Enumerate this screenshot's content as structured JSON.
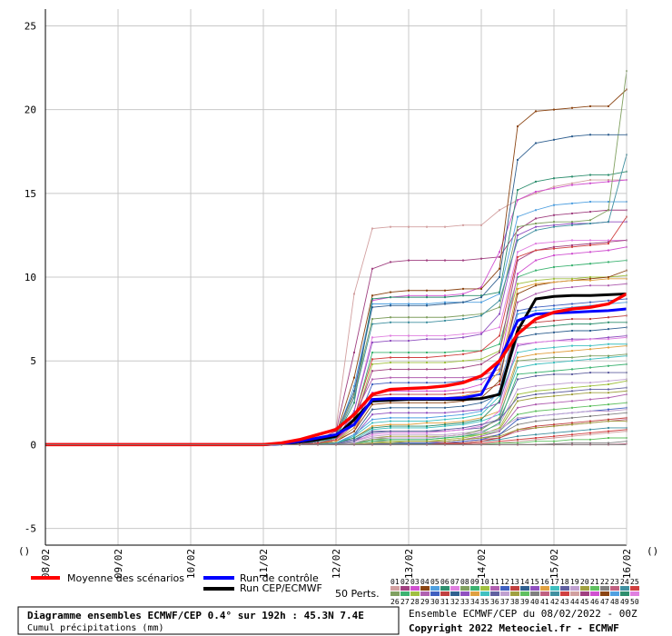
{
  "chart_data": {
    "type": "line",
    "title": "Diagramme ensembles ECMWF/CEP 0.4° sur 192h : 45.3N 7.4E",
    "subtitle": "Cumul précipitations (mm)",
    "ylim": [
      -6,
      26
    ],
    "yticks": [
      25,
      20,
      15,
      10,
      5,
      0,
      -5
    ],
    "x_labels": [
      "08/02",
      "09/02",
      "10/02",
      "11/02",
      "12/02",
      "13/02",
      "14/02",
      "15/02",
      "16/02"
    ],
    "x_range": [
      0,
      192
    ],
    "grid": true,
    "mean": {
      "name": "Moyenne des scénarios",
      "color": "#ff0000",
      "x": [
        0,
        72,
        78,
        84,
        90,
        96,
        102,
        108,
        114,
        120,
        126,
        132,
        138,
        144,
        150,
        156,
        162,
        168,
        174,
        180,
        186,
        192
      ],
      "y": [
        0,
        0,
        0.1,
        0.3,
        0.6,
        0.9,
        1.8,
        3.0,
        3.3,
        3.35,
        3.4,
        3.5,
        3.7,
        4.1,
        5.0,
        6.6,
        7.5,
        7.9,
        8.1,
        8.2,
        8.4,
        9.0
      ]
    },
    "control": {
      "name": "Run de contrôle",
      "color": "#0000ff",
      "x": [
        0,
        72,
        78,
        84,
        90,
        96,
        102,
        108,
        114,
        120,
        126,
        132,
        138,
        144,
        150,
        156,
        162,
        168,
        174,
        180,
        186,
        192
      ],
      "y": [
        0,
        0,
        0.05,
        0.2,
        0.4,
        0.6,
        1.2,
        2.7,
        2.75,
        2.75,
        2.75,
        2.75,
        2.8,
        3.0,
        5.0,
        7.4,
        7.8,
        7.85,
        7.9,
        7.95,
        8.0,
        8.1
      ]
    },
    "hres": {
      "name": "Run CEP/ECMWF",
      "color": "#000000",
      "x": [
        0,
        72,
        78,
        84,
        90,
        96,
        102,
        108,
        114,
        120,
        126,
        132,
        138,
        144,
        150,
        156,
        162,
        168,
        174,
        180,
        186,
        192
      ],
      "y": [
        0,
        0,
        0.05,
        0.15,
        0.3,
        0.5,
        1.5,
        2.6,
        2.65,
        2.7,
        2.7,
        2.7,
        2.7,
        2.75,
        3.0,
        6.8,
        8.7,
        8.85,
        8.9,
        8.9,
        8.95,
        9.0
      ]
    },
    "perturbations_label": "50 Perts.",
    "member_ids_row1": [
      "01",
      "02",
      "03",
      "04",
      "05",
      "06",
      "07",
      "08",
      "09",
      "10",
      "11",
      "12",
      "13",
      "14",
      "15",
      "16",
      "17",
      "18",
      "19",
      "20",
      "21",
      "22",
      "23",
      "24",
      "25"
    ],
    "member_ids_row2": [
      "26",
      "27",
      "28",
      "29",
      "30",
      "31",
      "32",
      "33",
      "34",
      "35",
      "36",
      "37",
      "38",
      "39",
      "40",
      "41",
      "42",
      "43",
      "44",
      "45",
      "46",
      "47",
      "48",
      "49",
      "50"
    ],
    "member_colors": [
      "#d2a0a0",
      "#a04080",
      "#d050d0",
      "#8b4513",
      "#50a0e0",
      "#2f8f6f",
      "#e080e0",
      "#80a060",
      "#3cb371",
      "#a0c040",
      "#b060b0",
      "#4060c0",
      "#c04040",
      "#306090",
      "#9050c0",
      "#e0a040",
      "#40c0c0",
      "#6060a0",
      "#c0a0d0",
      "#a0a040",
      "#60c060",
      "#808080",
      "#c06080",
      "#4090a0",
      "#d04040"
    ],
    "members": [
      [
        0,
        0,
        0,
        0,
        0.6,
        1.0,
        9.0,
        12.9,
        13.0,
        13.0,
        13.0,
        13.0,
        13.1,
        13.1,
        14.0,
        14.6,
        15.0,
        15.4,
        15.6,
        15.8,
        15.8,
        15.8
      ],
      [
        0,
        0,
        0,
        0,
        0.3,
        0.8,
        5.5,
        10.5,
        10.9,
        11.0,
        11.0,
        11.0,
        11.0,
        11.1,
        11.2,
        12.8,
        13.5,
        13.7,
        13.8,
        13.9,
        14.0,
        14.0
      ],
      [
        0,
        0,
        0,
        0,
        0.2,
        0.5,
        3.0,
        8.6,
        8.8,
        8.9,
        8.9,
        8.9,
        9.0,
        9.4,
        11.5,
        14.6,
        15.1,
        15.3,
        15.5,
        15.6,
        15.7,
        15.8
      ],
      [
        0,
        0,
        0,
        0,
        0.2,
        0.6,
        4.0,
        8.9,
        9.1,
        9.2,
        9.2,
        9.2,
        9.3,
        9.3,
        10.5,
        19.0,
        19.9,
        20.0,
        20.1,
        20.2,
        20.2,
        21.2
      ],
      [
        0,
        0,
        0,
        0,
        0.1,
        0.4,
        3.5,
        8.4,
        8.4,
        8.4,
        8.4,
        8.5,
        8.5,
        8.5,
        9.0,
        13.6,
        14.0,
        14.3,
        14.4,
        14.5,
        14.5,
        14.5
      ],
      [
        0,
        0,
        0,
        0,
        0.2,
        0.4,
        2.5,
        8.7,
        8.8,
        8.8,
        8.8,
        8.8,
        8.9,
        8.9,
        9.1,
        15.2,
        15.7,
        15.9,
        16.0,
        16.1,
        16.1,
        16.3
      ],
      [
        0,
        0,
        0,
        0,
        0.1,
        0.3,
        2.0,
        6.4,
        6.5,
        6.5,
        6.5,
        6.5,
        6.6,
        6.7,
        7.0,
        11.5,
        12.0,
        12.1,
        12.2,
        12.2,
        12.2,
        12.2
      ],
      [
        0,
        0,
        0,
        0,
        0.2,
        0.5,
        3.0,
        7.5,
        7.6,
        7.6,
        7.6,
        7.6,
        7.7,
        7.8,
        8.2,
        13.0,
        13.2,
        13.3,
        13.3,
        13.4,
        14.0,
        22.3
      ],
      [
        0,
        0,
        0,
        0,
        0.1,
        0.3,
        1.5,
        5.5,
        5.5,
        5.5,
        5.5,
        5.5,
        5.6,
        5.6,
        6.0,
        10.0,
        10.4,
        10.6,
        10.7,
        10.8,
        10.9,
        11.0
      ],
      [
        0,
        0,
        0,
        0,
        0.1,
        0.2,
        1.2,
        4.8,
        4.9,
        4.9,
        4.9,
        4.9,
        5.0,
        5.1,
        5.6,
        9.6,
        9.8,
        9.9,
        9.9,
        10.0,
        10.0,
        10.1
      ],
      [
        0,
        0,
        0,
        0,
        0.1,
        0.3,
        1.8,
        3.9,
        4.0,
        4.0,
        4.0,
        4.0,
        4.0,
        4.1,
        4.5,
        8.5,
        9.0,
        9.3,
        9.4,
        9.5,
        9.5,
        9.6
      ],
      [
        0,
        0,
        0,
        0,
        0.1,
        0.2,
        1.0,
        3.6,
        3.7,
        3.7,
        3.7,
        3.7,
        3.8,
        3.9,
        4.2,
        8.0,
        8.2,
        8.3,
        8.4,
        8.5,
        8.6,
        8.7
      ],
      [
        0,
        0,
        0,
        0,
        0.05,
        0.2,
        0.8,
        2.9,
        3.0,
        3.0,
        3.0,
        3.0,
        3.1,
        3.2,
        3.6,
        7.0,
        7.3,
        7.4,
        7.5,
        7.5,
        7.6,
        7.7
      ],
      [
        0,
        0,
        0,
        0,
        0.05,
        0.1,
        0.6,
        2.1,
        2.2,
        2.2,
        2.2,
        2.2,
        2.3,
        2.5,
        3.0,
        6.4,
        6.6,
        6.7,
        6.8,
        6.8,
        6.9,
        7.0
      ],
      [
        0,
        0,
        0,
        0,
        0.05,
        0.1,
        0.5,
        1.8,
        1.9,
        1.9,
        1.9,
        1.9,
        2.0,
        2.1,
        2.5,
        5.9,
        6.1,
        6.2,
        6.3,
        6.3,
        6.4,
        6.5
      ],
      [
        0,
        0,
        0,
        0,
        0.05,
        0.1,
        0.4,
        1.1,
        1.2,
        1.2,
        1.3,
        1.3,
        1.4,
        1.6,
        2.0,
        5.2,
        5.4,
        5.5,
        5.6,
        5.7,
        5.8,
        5.9
      ],
      [
        0,
        0,
        0,
        0,
        0.05,
        0.1,
        0.3,
        0.9,
        1.0,
        1.0,
        1.0,
        1.1,
        1.2,
        1.4,
        1.8,
        4.6,
        4.8,
        4.9,
        5.0,
        5.1,
        5.2,
        5.3
      ],
      [
        0,
        0,
        0,
        0,
        0.05,
        0.1,
        0.3,
        0.7,
        0.8,
        0.8,
        0.8,
        0.8,
        0.9,
        1.0,
        1.5,
        3.9,
        4.1,
        4.2,
        4.2,
        4.3,
        4.3,
        4.3
      ],
      [
        0,
        0,
        0,
        0,
        0.0,
        0.05,
        0.2,
        0.5,
        0.6,
        0.6,
        0.6,
        0.6,
        0.7,
        0.8,
        1.2,
        3.3,
        3.5,
        3.6,
        3.7,
        3.7,
        3.8,
        3.9
      ],
      [
        0,
        0,
        0,
        0,
        0.0,
        0.05,
        0.1,
        0.4,
        0.5,
        0.5,
        0.5,
        0.5,
        0.6,
        0.7,
        0.9,
        2.6,
        2.8,
        2.9,
        3.0,
        3.1,
        3.1,
        3.2
      ],
      [
        0,
        0,
        0,
        0,
        0.0,
        0.0,
        0.1,
        0.3,
        0.3,
        0.3,
        0.3,
        0.4,
        0.5,
        0.6,
        0.8,
        1.8,
        2.0,
        2.1,
        2.2,
        2.3,
        2.4,
        2.5
      ],
      [
        0,
        0,
        0,
        0,
        0.0,
        0.0,
        0.1,
        0.2,
        0.2,
        0.2,
        0.2,
        0.2,
        0.3,
        0.4,
        0.6,
        1.2,
        1.4,
        1.5,
        1.6,
        1.7,
        1.8,
        1.9
      ],
      [
        0,
        0,
        0,
        0,
        0.0,
        0.0,
        0.05,
        0.1,
        0.1,
        0.1,
        0.1,
        0.1,
        0.2,
        0.3,
        0.4,
        0.8,
        1.0,
        1.1,
        1.2,
        1.3,
        1.4,
        1.5
      ],
      [
        0,
        0,
        0,
        0,
        0.0,
        0.0,
        0.0,
        0.05,
        0.05,
        0.05,
        0.05,
        0.1,
        0.1,
        0.2,
        0.3,
        0.5,
        0.6,
        0.7,
        0.8,
        0.9,
        1.0,
        1.0
      ],
      [
        0,
        0,
        0,
        0,
        0.0,
        0.0,
        0.0,
        0.0,
        0.0,
        0.0,
        0.0,
        0.05,
        0.05,
        0.1,
        0.2,
        0.3,
        0.4,
        0.5,
        0.6,
        0.7,
        0.8,
        0.9
      ],
      [
        0,
        0,
        0,
        0,
        0.0,
        0.0,
        0.0,
        0.0,
        0.0,
        0.0,
        0.0,
        0.0,
        0.0,
        0.05,
        0.1,
        0.2,
        0.3,
        0.4,
        0.5,
        0.6,
        0.7,
        0.8
      ],
      [
        0,
        0,
        0,
        0,
        0.1,
        0.3,
        1.4,
        4.4,
        4.5,
        4.5,
        4.5,
        4.5,
        4.6,
        4.8,
        5.5,
        11.0,
        11.6,
        11.8,
        11.9,
        12.0,
        12.1,
        12.2
      ],
      [
        0,
        0,
        0,
        0,
        0.1,
        0.3,
        1.2,
        3.1,
        3.2,
        3.2,
        3.2,
        3.2,
        3.3,
        3.6,
        4.8,
        10.2,
        11.0,
        11.3,
        11.4,
        11.5,
        11.6,
        11.8
      ],
      [
        0,
        0,
        0,
        0,
        0.05,
        0.2,
        0.8,
        2.4,
        2.5,
        2.5,
        2.5,
        2.5,
        2.6,
        2.8,
        3.8,
        9.0,
        9.5,
        9.7,
        9.8,
        9.9,
        10.0,
        10.4
      ],
      [
        0,
        0,
        0,
        0,
        0.05,
        0.1,
        0.6,
        1.5,
        1.6,
        1.6,
        1.6,
        1.7,
        1.8,
        2.0,
        3.2,
        7.8,
        8.0,
        8.1,
        8.2,
        8.3,
        8.4,
        8.5
      ],
      [
        0,
        0,
        0,
        0,
        0.05,
        0.1,
        0.4,
        1.0,
        1.1,
        1.1,
        1.1,
        1.2,
        1.3,
        1.5,
        2.6,
        6.9,
        7.0,
        7.1,
        7.2,
        7.2,
        7.3,
        7.3
      ],
      [
        0,
        0,
        0,
        0,
        0.0,
        0.05,
        0.2,
        0.6,
        0.7,
        0.7,
        0.7,
        0.8,
        0.9,
        1.1,
        2.0,
        6.0,
        6.1,
        6.2,
        6.2,
        6.3,
        6.3,
        6.4
      ],
      [
        0,
        0,
        0,
        0,
        0.0,
        0.05,
        0.1,
        0.3,
        0.4,
        0.4,
        0.4,
        0.5,
        0.6,
        0.9,
        1.6,
        5.0,
        5.1,
        5.2,
        5.2,
        5.3,
        5.3,
        5.4
      ],
      [
        0,
        0,
        0,
        0,
        0.0,
        0.0,
        0.1,
        0.2,
        0.3,
        0.3,
        0.3,
        0.4,
        0.5,
        0.7,
        1.3,
        4.2,
        4.3,
        4.4,
        4.5,
        4.6,
        4.7,
        4.8
      ],
      [
        0,
        0,
        0,
        0,
        0.0,
        0.0,
        0.05,
        0.1,
        0.2,
        0.2,
        0.2,
        0.3,
        0.4,
        0.6,
        1.0,
        3.0,
        3.2,
        3.3,
        3.4,
        3.5,
        3.6,
        3.8
      ],
      [
        0,
        0,
        0,
        0,
        0.0,
        0.0,
        0.0,
        0.1,
        0.1,
        0.1,
        0.1,
        0.2,
        0.3,
        0.5,
        0.8,
        2.2,
        2.4,
        2.5,
        2.6,
        2.7,
        2.8,
        3.0
      ],
      [
        0,
        0,
        0,
        0,
        0.0,
        0.0,
        0.0,
        0.0,
        0.1,
        0.1,
        0.1,
        0.1,
        0.2,
        0.3,
        0.6,
        1.5,
        1.7,
        1.8,
        1.9,
        2.0,
        2.1,
        2.2
      ],
      [
        0,
        0,
        0,
        0,
        0.0,
        0.0,
        0.0,
        0.0,
        0.0,
        0.0,
        0.0,
        0.1,
        0.1,
        0.2,
        0.4,
        0.9,
        1.1,
        1.2,
        1.3,
        1.4,
        1.5,
        1.6
      ],
      [
        0,
        0,
        0,
        0,
        0.2,
        0.6,
        3.2,
        8.2,
        8.3,
        8.3,
        8.3,
        8.4,
        8.5,
        8.8,
        10.0,
        17.0,
        18.0,
        18.2,
        18.4,
        18.5,
        18.5,
        18.5
      ],
      [
        0,
        0,
        0,
        0,
        0.1,
        0.3,
        2.0,
        6.1,
        6.2,
        6.2,
        6.3,
        6.3,
        6.4,
        6.6,
        7.8,
        12.5,
        13.0,
        13.1,
        13.2,
        13.2,
        13.3,
        13.3
      ],
      [
        0,
        0,
        0,
        0,
        0.1,
        0.2,
        1.0,
        2.6,
        2.7,
        2.7,
        2.7,
        2.8,
        2.9,
        3.2,
        4.4,
        9.3,
        9.6,
        9.7,
        9.8,
        9.8,
        9.9,
        9.9
      ],
      [
        0,
        0,
        0,
        0,
        0.0,
        0.1,
        0.5,
        1.3,
        1.4,
        1.4,
        1.4,
        1.5,
        1.6,
        1.8,
        2.9,
        5.5,
        5.7,
        5.8,
        5.9,
        5.9,
        6.0,
        6.0
      ],
      [
        0,
        0,
        0,
        0,
        0.0,
        0.05,
        0.2,
        0.8,
        0.8,
        0.8,
        0.8,
        0.9,
        1.0,
        1.2,
        1.5,
        2.8,
        3.0,
        3.1,
        3.2,
        3.3,
        3.3,
        3.4
      ],
      [
        0,
        0,
        0,
        0,
        0.0,
        0.0,
        0.1,
        0.4,
        0.4,
        0.4,
        0.4,
        0.5,
        0.6,
        0.7,
        0.9,
        1.6,
        1.7,
        1.8,
        1.9,
        2.0,
        2.0,
        2.1
      ],
      [
        0,
        0,
        0,
        0,
        0.0,
        0.0,
        0.0,
        0.1,
        0.1,
        0.2,
        0.2,
        0.2,
        0.3,
        0.4,
        0.5,
        0.9,
        1.0,
        1.1,
        1.2,
        1.3,
        1.4,
        1.4
      ],
      [
        0,
        0,
        0,
        0,
        0.0,
        0.0,
        0.0,
        0.0,
        0.0,
        0.0,
        0.0,
        0.0,
        0.0,
        0.0,
        0.1,
        0.1,
        0.2,
        0.2,
        0.3,
        0.3,
        0.4,
        0.4
      ],
      [
        0,
        0,
        0,
        0,
        0.0,
        0.0,
        0.0,
        0.0,
        0.0,
        0.0,
        0.0,
        0.0,
        0.0,
        0.0,
        0.0,
        0.0,
        0.0,
        0.05,
        0.1,
        0.1,
        0.1,
        0.2
      ],
      [
        0,
        0,
        0,
        0,
        0.0,
        0.0,
        0.0,
        0.0,
        0.0,
        0.0,
        0.0,
        0.0,
        0.0,
        0.0,
        0.0,
        0.0,
        0.0,
        0.0,
        0.0,
        0.0,
        0.0,
        0.05
      ],
      [
        0,
        0,
        0,
        0,
        0.1,
        0.4,
        2.8,
        7.2,
        7.3,
        7.3,
        7.3,
        7.4,
        7.5,
        7.7,
        8.6,
        12.2,
        12.8,
        13.0,
        13.1,
        13.2,
        13.3,
        17.3
      ],
      [
        0,
        0,
        0,
        0,
        0.1,
        0.3,
        1.6,
        5.1,
        5.2,
        5.2,
        5.2,
        5.3,
        5.4,
        5.6,
        6.5,
        11.2,
        11.6,
        11.7,
        11.8,
        11.9,
        12.0,
        13.6
      ]
    ]
  },
  "legend": {
    "mean_label": "Moyenne des scénarios",
    "control_label": "Run de contrôle",
    "hres_label": "Run CEP/ECMWF"
  },
  "footer": {
    "title": "Diagramme ensembles ECMWF/CEP 0.4° sur 192h : 45.3N 7.4E",
    "subtitle": "Cumul précipitations (mm)",
    "run_info": "Ensemble ECMWF/CEP du 08/02/2022 - 00Z",
    "copyright": "Copyright 2022 Meteociel.fr - ECMWF"
  },
  "misc": {
    "paren_label": "()"
  }
}
